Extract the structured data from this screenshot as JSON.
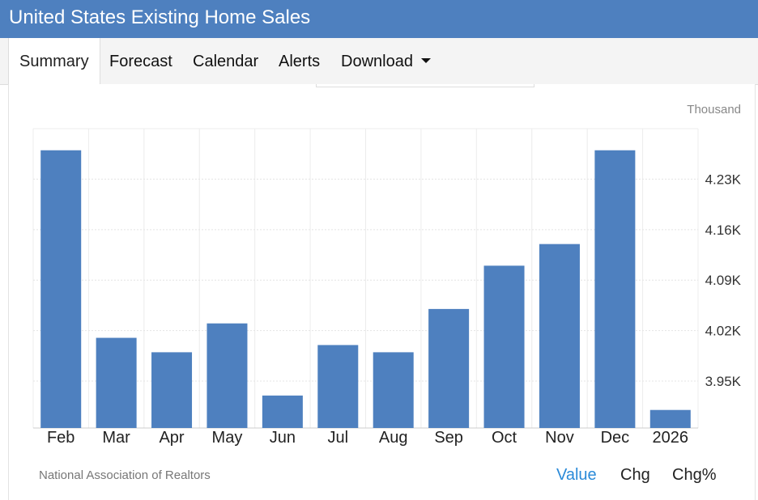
{
  "page_title": "United States Existing Home Sales",
  "tabs": [
    {
      "label": "Summary",
      "active": true
    },
    {
      "label": "Forecast"
    },
    {
      "label": "Calendar"
    },
    {
      "label": "Alerts"
    },
    {
      "label": "Download",
      "dropdown": true
    }
  ],
  "source": "National Association of Realtors",
  "view_toggles": [
    "Value",
    "Chg",
    "Chg%"
  ],
  "active_toggle": "Value",
  "colors": {
    "header": "#4e80bf",
    "bar": "#4e80bf",
    "active_toggle": "#2a8ad8"
  },
  "chart_data": {
    "type": "bar",
    "unit_label": "Thousand",
    "categories": [
      "Feb",
      "Mar",
      "Apr",
      "May",
      "Jun",
      "Jul",
      "Aug",
      "Sep",
      "Oct",
      "Nov",
      "Dec",
      "2026"
    ],
    "values": [
      4.27,
      4.01,
      3.99,
      4.03,
      3.93,
      4.0,
      3.99,
      4.05,
      4.11,
      4.14,
      4.27,
      3.91
    ],
    "yticks": [
      {
        "value": 3.95,
        "label": "3.95K"
      },
      {
        "value": 4.02,
        "label": "4.02K"
      },
      {
        "value": 4.09,
        "label": "4.09K"
      },
      {
        "value": 4.16,
        "label": "4.16K"
      },
      {
        "value": 4.23,
        "label": "4.23K"
      }
    ],
    "ylim": [
      3.885,
      4.3
    ],
    "y_axis_side": "right",
    "grid": true
  }
}
